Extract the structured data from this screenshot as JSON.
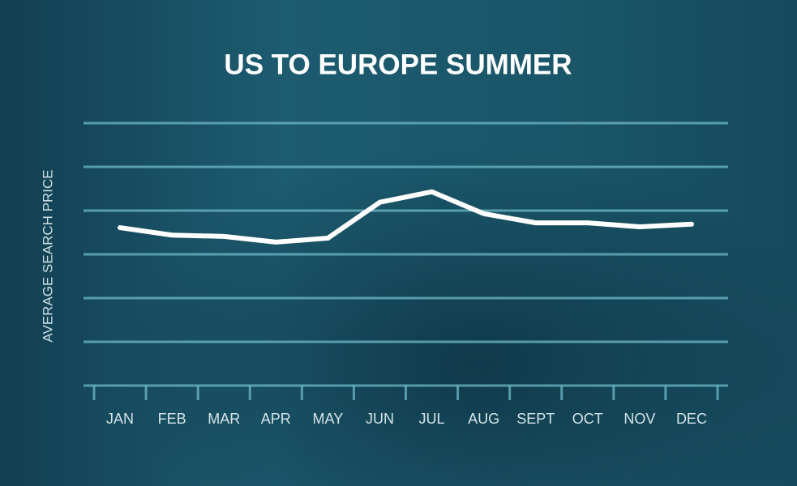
{
  "chart_data": {
    "type": "line",
    "title": "US TO EUROPE SUMMER",
    "y_label": "AVERAGE SEARCH PRICE",
    "categories": [
      "JAN",
      "FEB",
      "MAR",
      "APR",
      "MAY",
      "JUN",
      "JUL",
      "AUG",
      "SEPT",
      "OCT",
      "NOV",
      "DEC"
    ],
    "values": [
      3.61,
      3.44,
      3.41,
      3.28,
      3.37,
      4.19,
      4.43,
      3.93,
      3.72,
      3.72,
      3.63,
      3.69
    ],
    "color": "#ffffff",
    "ylim": [
      0,
      6
    ],
    "yticks": [
      0,
      1,
      2,
      3,
      4,
      5,
      6
    ],
    "grid": true
  }
}
